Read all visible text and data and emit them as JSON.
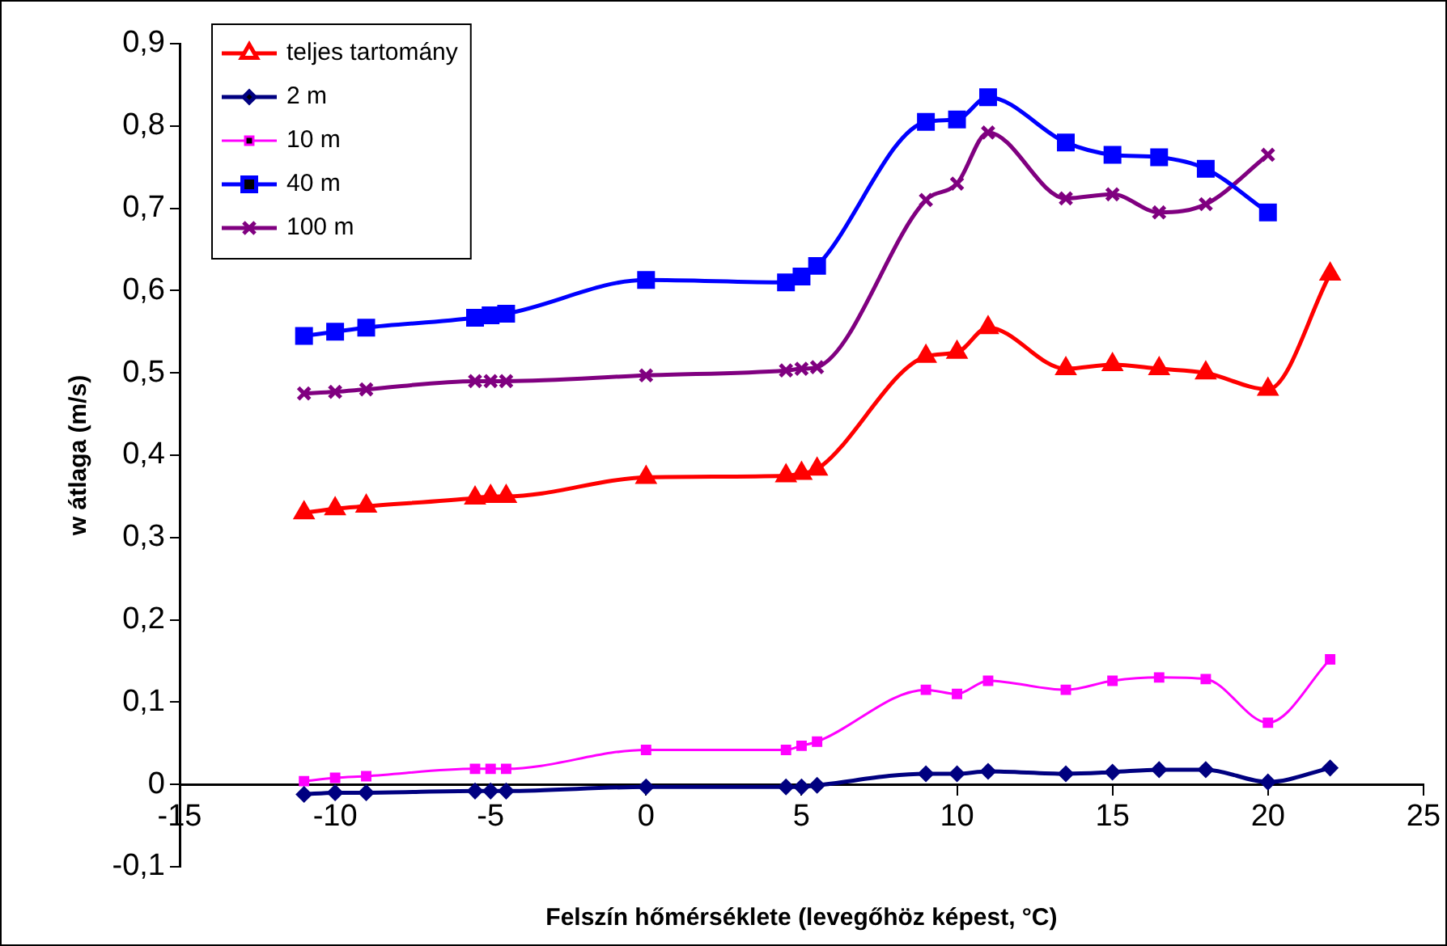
{
  "chart_data": {
    "type": "line",
    "xlabel": "Felszín hőmérséklete (levegőhöz képest, °C)",
    "ylabel": "w átlaga (m/s)",
    "x": [
      -11,
      -10,
      -9,
      -5.5,
      -5,
      -4.5,
      0,
      4.5,
      5,
      5.5,
      9,
      10,
      11,
      13.5,
      15,
      16.5,
      18,
      20,
      22
    ],
    "series": [
      {
        "name": "teljes tartomány",
        "color": "#ff0000",
        "marker": "triangle",
        "values": [
          0.33,
          0.335,
          0.338,
          0.348,
          0.35,
          0.35,
          0.373,
          0.375,
          0.378,
          0.383,
          0.52,
          0.525,
          0.555,
          0.505,
          0.51,
          0.505,
          0.5,
          0.48,
          0.62
        ]
      },
      {
        "name": "2 m",
        "color": "#000080",
        "marker": "diamond",
        "values": [
          -0.012,
          -0.01,
          -0.01,
          -0.008,
          -0.008,
          -0.008,
          -0.003,
          -0.003,
          -0.003,
          -0.001,
          0.013,
          0.013,
          0.016,
          0.013,
          0.015,
          0.018,
          0.018,
          0.003,
          0.02
        ]
      },
      {
        "name": "10 m",
        "color": "#ff00ff",
        "marker": "square",
        "values": [
          0.004,
          0.008,
          0.01,
          0.019,
          0.019,
          0.019,
          0.042,
          0.042,
          0.047,
          0.052,
          0.115,
          0.11,
          0.126,
          0.115,
          0.126,
          0.13,
          0.128,
          0.075,
          0.152
        ]
      },
      {
        "name": "40 m",
        "color": "#0000ff",
        "marker": "square",
        "values": [
          0.545,
          0.55,
          0.555,
          0.567,
          0.57,
          0.572,
          0.613,
          0.61,
          0.617,
          0.63,
          0.805,
          0.808,
          0.835,
          0.78,
          0.765,
          0.762,
          0.748,
          0.695,
          null
        ]
      },
      {
        "name": "100 m",
        "color": "#800080",
        "marker": "cross",
        "values": [
          0.475,
          0.477,
          0.48,
          0.49,
          0.49,
          0.49,
          0.497,
          0.503,
          0.505,
          0.507,
          0.71,
          0.73,
          0.792,
          0.712,
          0.717,
          0.695,
          0.705,
          0.765,
          null
        ]
      }
    ],
    "xlim": [
      -15,
      25
    ],
    "xticks": [
      -15,
      -10,
      -5,
      0,
      5,
      10,
      15,
      20,
      25
    ],
    "ylim": [
      -0.1,
      0.9
    ],
    "yticks": [
      {
        "value": -0.1,
        "label": "-0,1"
      },
      0,
      {
        "value": 0.1,
        "label": "0,1"
      },
      {
        "value": 0.2,
        "label": "0,2"
      },
      {
        "value": 0.3,
        "label": "0,3"
      },
      {
        "value": 0.4,
        "label": "0,4"
      },
      {
        "value": 0.5,
        "label": "0,5"
      },
      {
        "value": 0.6,
        "label": "0,6"
      },
      {
        "value": 0.7,
        "label": "0,7"
      },
      {
        "value": 0.8,
        "label": "0,8"
      },
      {
        "value": 0.9,
        "label": "0,9"
      }
    ],
    "grid": false,
    "legend": "top left"
  }
}
